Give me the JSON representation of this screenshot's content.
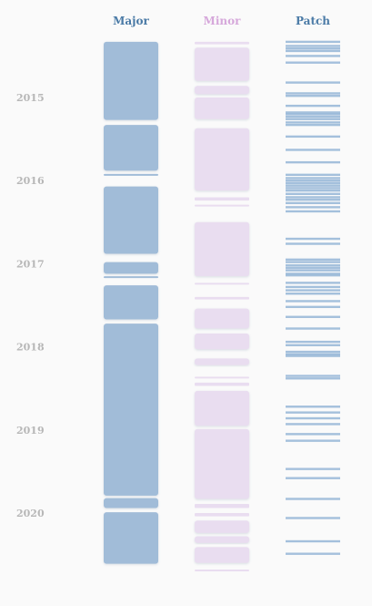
{
  "chart_data": {
    "type": "timeline-strips",
    "title": "",
    "colors": {
      "major": "#a1bcd8",
      "minor": "#e9ddf0",
      "patch": "#94b5d6",
      "major_title": "#4a7aa6",
      "minor_title": "#d6a8db",
      "patch_title": "#4a7aa6",
      "year_label": "#b7b7b7"
    },
    "columns": [
      {
        "key": "major",
        "label": "Major"
      },
      {
        "key": "minor",
        "label": "Minor"
      },
      {
        "key": "patch",
        "label": "Patch"
      }
    ],
    "years": [
      "2015",
      "2016",
      "2017",
      "2018",
      "2019",
      "2020"
    ],
    "time_range": [
      2014.3,
      2021.0
    ],
    "series": {
      "major": [
        [
          2014.33,
          2015.27
        ],
        [
          2015.33,
          2015.88
        ],
        [
          2015.92,
          2015.94
        ],
        [
          2016.07,
          2016.88
        ],
        [
          2016.98,
          2017.12
        ],
        [
          2017.15,
          2017.16
        ],
        [
          2017.26,
          2017.67
        ],
        [
          2017.72,
          2019.79
        ],
        [
          2019.82,
          2019.94
        ],
        [
          2019.99,
          2020.61
        ]
      ],
      "minor": [
        [
          2014.33,
          2014.36
        ],
        [
          2014.4,
          2014.8
        ],
        [
          2014.86,
          2014.96
        ],
        [
          2015.0,
          2015.26
        ],
        [
          2015.37,
          2016.12
        ],
        [
          2016.2,
          2016.24
        ],
        [
          2016.29,
          2016.3
        ],
        [
          2016.5,
          2017.15
        ],
        [
          2017.23,
          2017.25
        ],
        [
          2017.4,
          2017.43
        ],
        [
          2017.54,
          2017.78
        ],
        [
          2017.84,
          2018.03
        ],
        [
          2018.14,
          2018.22
        ],
        [
          2018.36,
          2018.38
        ],
        [
          2018.43,
          2018.47
        ],
        [
          2018.53,
          2018.95
        ],
        [
          2018.99,
          2019.83
        ],
        [
          2019.89,
          2019.94
        ],
        [
          2020.0,
          2020.04
        ],
        [
          2020.09,
          2020.24
        ],
        [
          2020.28,
          2020.36
        ],
        [
          2020.41,
          2020.6
        ],
        [
          2020.68,
          2020.7
        ]
      ],
      "patch": [
        2014.33,
        2014.38,
        2014.41,
        2014.44,
        2014.5,
        2014.58,
        2014.82,
        2014.95,
        2014.98,
        2015.1,
        2015.18,
        2015.2,
        2015.23,
        2015.26,
        2015.3,
        2015.33,
        2015.47,
        2015.63,
        2015.78,
        2015.93,
        2015.97,
        2016.0,
        2016.03,
        2016.06,
        2016.09,
        2016.12,
        2016.16,
        2016.2,
        2016.23,
        2016.27,
        2016.32,
        2016.37,
        2016.7,
        2016.76,
        2016.95,
        2016.98,
        2017.02,
        2017.05,
        2017.08,
        2017.12,
        2017.14,
        2017.23,
        2017.28,
        2017.32,
        2017.36,
        2017.45,
        2017.52,
        2017.64,
        2017.78,
        2017.94,
        2017.98,
        2018.06,
        2018.09,
        2018.11,
        2018.35,
        2018.38,
        2018.72,
        2018.79,
        2018.86,
        2018.93,
        2019.05,
        2019.13,
        2019.47,
        2019.58,
        2019.83,
        2020.06,
        2020.34,
        2020.49
      ]
    }
  }
}
